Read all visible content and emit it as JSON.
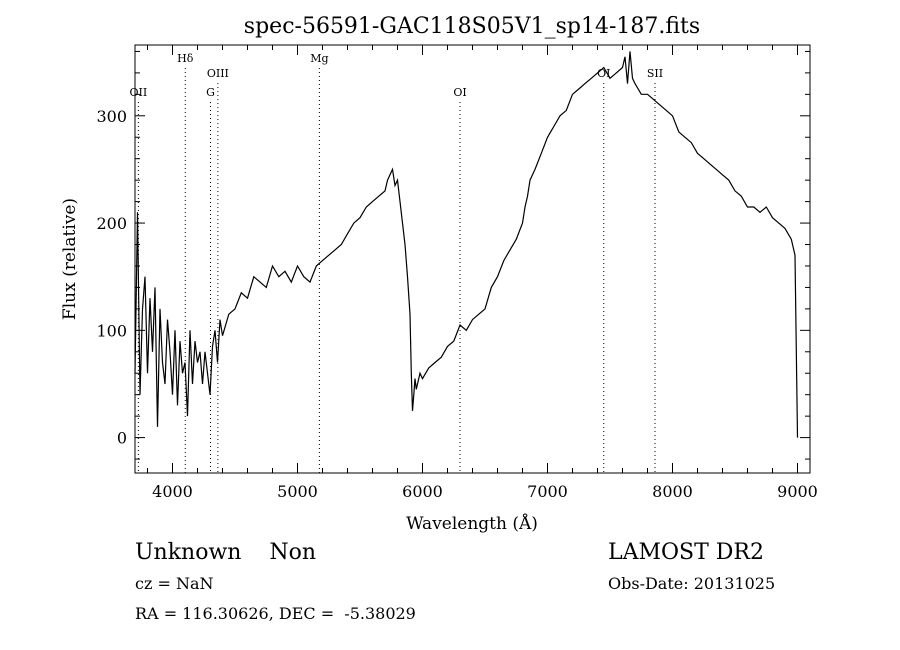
{
  "chart_data": {
    "type": "line",
    "title": "spec-56591-GAC118S05V1_sp14-187.fits",
    "xlabel": "Wavelength (Å)",
    "ylabel": "Flux (relative)",
    "xlim": [
      3700,
      9100
    ],
    "ylim": [
      -33,
      366
    ],
    "x_ticks": [
      4000,
      5000,
      6000,
      7000,
      8000,
      9000
    ],
    "y_ticks": [
      0,
      100,
      200,
      300
    ],
    "grid": false,
    "line_color": "#000000",
    "lines": [
      {
        "label": "OII",
        "x": 3727,
        "row": 2
      },
      {
        "label": "Hδ",
        "x": 4102,
        "row": 0
      },
      {
        "label": "G",
        "x": 4304,
        "row": 2
      },
      {
        "label": "OIII",
        "x": 4363,
        "row": 1
      },
      {
        "label": "Mg",
        "x": 5175,
        "row": 0
      },
      {
        "label": "OI",
        "x": 6300,
        "row": 2
      },
      {
        "label": "OI",
        "x": 7450,
        "row": 1
      },
      {
        "label": "SII",
        "x": 7860,
        "row": 1
      }
    ],
    "series": [
      {
        "x": [
          3700,
          3720,
          3740,
          3760,
          3780,
          3800,
          3820,
          3840,
          3860,
          3880,
          3900,
          3920,
          3940,
          3960,
          3980,
          4000,
          4020,
          4040,
          4060,
          4080,
          4100,
          4120,
          4140,
          4160,
          4180,
          4200,
          4220,
          4240,
          4260,
          4280,
          4300,
          4320,
          4340,
          4360,
          4380,
          4400,
          4450,
          4500,
          4550,
          4600,
          4650,
          4700,
          4750,
          4800,
          4850,
          4900,
          4950,
          5000,
          5050,
          5100,
          5150,
          5200,
          5250,
          5300,
          5350,
          5400,
          5450,
          5500,
          5550,
          5600,
          5650,
          5700,
          5720,
          5740,
          5760,
          5780,
          5800,
          5820,
          5840,
          5860,
          5880,
          5900,
          5910,
          5920,
          5930,
          5940,
          5950,
          5960,
          5980,
          6000,
          6050,
          6100,
          6150,
          6200,
          6250,
          6300,
          6350,
          6400,
          6450,
          6500,
          6550,
          6600,
          6650,
          6700,
          6750,
          6800,
          6820,
          6840,
          6860,
          6880,
          6900,
          6950,
          7000,
          7050,
          7100,
          7150,
          7200,
          7250,
          7300,
          7350,
          7400,
          7450,
          7500,
          7550,
          7600,
          7620,
          7640,
          7660,
          7680,
          7700,
          7750,
          7800,
          7850,
          7900,
          7950,
          8000,
          8050,
          8100,
          8150,
          8200,
          8250,
          8300,
          8350,
          8400,
          8450,
          8500,
          8550,
          8600,
          8650,
          8700,
          8750,
          8800,
          8850,
          8900,
          8950,
          8980,
          9000
        ],
        "y": [
          60,
          210,
          40,
          120,
          150,
          60,
          130,
          80,
          140,
          10,
          120,
          70,
          50,
          110,
          80,
          40,
          100,
          30,
          90,
          60,
          70,
          20,
          100,
          50,
          90,
          70,
          80,
          50,
          80,
          60,
          40,
          85,
          100,
          70,
          110,
          95,
          115,
          120,
          135,
          130,
          150,
          145,
          140,
          160,
          150,
          155,
          145,
          160,
          150,
          145,
          160,
          165,
          170,
          175,
          180,
          190,
          200,
          205,
          215,
          220,
          225,
          230,
          240,
          245,
          250,
          235,
          240,
          220,
          200,
          180,
          150,
          115,
          60,
          25,
          40,
          55,
          45,
          50,
          60,
          55,
          65,
          70,
          75,
          85,
          90,
          105,
          100,
          110,
          115,
          120,
          140,
          150,
          165,
          175,
          185,
          200,
          215,
          225,
          240,
          245,
          250,
          265,
          280,
          290,
          300,
          305,
          320,
          325,
          330,
          335,
          340,
          345,
          335,
          340,
          345,
          355,
          330,
          360,
          335,
          330,
          320,
          320,
          315,
          310,
          305,
          300,
          285,
          280,
          275,
          265,
          260,
          255,
          250,
          245,
          240,
          230,
          225,
          215,
          215,
          210,
          215,
          205,
          200,
          195,
          185,
          170,
          0
        ]
      }
    ]
  },
  "footer": {
    "class_label": "Unknown    Non",
    "cz_label": "cz = NaN",
    "radec_label": "RA = 116.30626, DEC =  -5.38029",
    "survey_label": "LAMOST DR2",
    "obsdate_label": "Obs-Date: 20131025"
  }
}
